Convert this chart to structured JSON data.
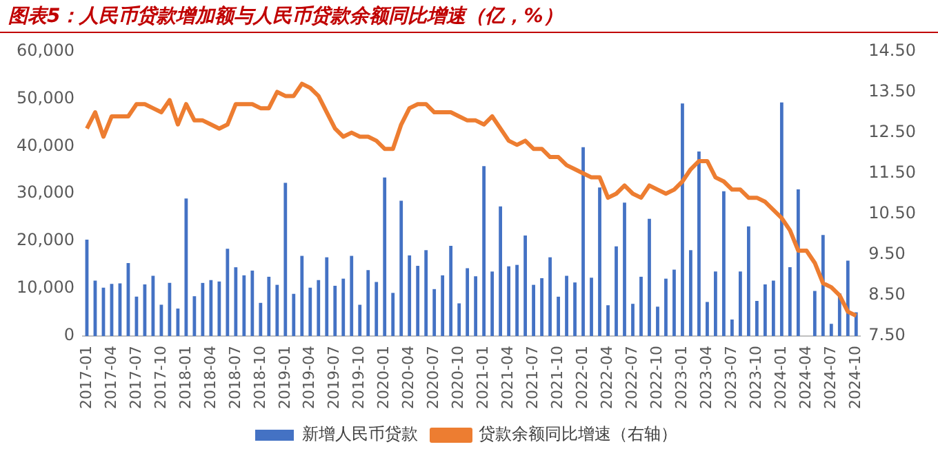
{
  "chart_data": {
    "type": "bar",
    "title": "图表5：人民币贷款增加额与人民币贷款余额同比增速（亿，%）",
    "categories": [
      "2017-01",
      null,
      null,
      "2017-04",
      null,
      null,
      "2017-07",
      null,
      null,
      "2017-10",
      null,
      null,
      "2018-01",
      null,
      null,
      "2018-04",
      null,
      null,
      "2018-07",
      null,
      null,
      "2018-10",
      null,
      null,
      "2019-01",
      null,
      null,
      "2019-04",
      null,
      null,
      "2019-07",
      null,
      null,
      "2019-10",
      null,
      null,
      "2020-01",
      null,
      null,
      "2020-04",
      null,
      null,
      "2020-07",
      null,
      null,
      "2020-10",
      null,
      null,
      "2021-01",
      null,
      null,
      "2021-04",
      null,
      null,
      "2021-07",
      null,
      null,
      "2021-10",
      null,
      null,
      "2022-01",
      null,
      null,
      "2022-04",
      null,
      null,
      "2022-07",
      null,
      null,
      "2022-10",
      null,
      null,
      "2023-01",
      null,
      null,
      "2023-04",
      null,
      null,
      "2023-07",
      null,
      null,
      "2023-10",
      null,
      null,
      "2024-01",
      null,
      null,
      "2024-04",
      null,
      null,
      "2024-07",
      null,
      null,
      "2024-10"
    ],
    "series": [
      {
        "name": "新增人民币贷款",
        "color": "#4472c4",
        "values": [
          20300,
          11700,
          10200,
          11000,
          11100,
          15400,
          8300,
          10900,
          12700,
          6600,
          11200,
          5800,
          29000,
          8400,
          11200,
          11800,
          11500,
          18400,
          14500,
          12800,
          13800,
          7000,
          12500,
          10800,
          32300,
          8900,
          16900,
          10200,
          11800,
          16600,
          10600,
          12100,
          16900,
          6600,
          13900,
          11400,
          33400,
          9100,
          28500,
          17000,
          14800,
          18100,
          9900,
          12800,
          19000,
          6900,
          14300,
          12600,
          35800,
          13600,
          27300,
          14700,
          15000,
          21200,
          10800,
          12200,
          16600,
          8300,
          12700,
          11300,
          39800,
          12300,
          31300,
          6500,
          18900,
          28100,
          6800,
          12500,
          24700,
          6200,
          12100,
          14000,
          49000,
          18100,
          38900,
          7200,
          13600,
          30500,
          3500,
          13600,
          23100,
          7400,
          10900,
          11700,
          49200,
          14500,
          30900,
          null,
          9500,
          21300,
          2600,
          9000,
          15900,
          5000
        ]
      },
      {
        "name": "贷款余额同比增速（右轴）",
        "type": "line",
        "axis": "y2",
        "color": "#ed7d31",
        "values": [
          12.6,
          13.0,
          12.4,
          12.9,
          12.9,
          12.9,
          13.2,
          13.2,
          13.1,
          13.0,
          13.3,
          12.7,
          13.2,
          12.8,
          12.8,
          12.7,
          12.6,
          12.7,
          13.2,
          13.2,
          13.2,
          13.1,
          13.1,
          13.5,
          13.4,
          13.4,
          13.7,
          13.6,
          13.4,
          13.0,
          12.6,
          12.4,
          12.5,
          12.4,
          12.4,
          12.3,
          12.1,
          12.1,
          12.7,
          13.1,
          13.2,
          13.2,
          13.0,
          13.0,
          13.0,
          12.9,
          12.8,
          12.8,
          12.7,
          12.9,
          12.6,
          12.3,
          12.2,
          12.3,
          12.1,
          12.1,
          11.9,
          11.9,
          11.7,
          11.6,
          11.5,
          11.4,
          11.4,
          10.9,
          11.0,
          11.2,
          11.0,
          10.9,
          11.2,
          11.1,
          11.0,
          11.1,
          11.3,
          11.6,
          11.8,
          11.8,
          11.4,
          11.3,
          11.1,
          11.1,
          10.9,
          10.9,
          10.8,
          10.6,
          10.4,
          10.1,
          9.6,
          9.6,
          9.3,
          8.8,
          8.7,
          8.5,
          8.1,
          8.0
        ]
      }
    ],
    "ylim": [
      0,
      60000
    ],
    "yticks": [
      {
        "value": 0,
        "label": "0"
      },
      {
        "value": 10000,
        "label": "10,000"
      },
      {
        "value": 20000,
        "label": "20,000"
      },
      {
        "value": 30000,
        "label": "30,000"
      },
      {
        "value": 40000,
        "label": "40,000"
      },
      {
        "value": 50000,
        "label": "50,000"
      },
      {
        "value": 60000,
        "label": "60,000"
      }
    ],
    "y2lim": [
      7.5,
      14.5
    ],
    "y2ticks": [
      {
        "value": 7.5,
        "label": "7.50"
      },
      {
        "value": 8.5,
        "label": "8.50"
      },
      {
        "value": 9.5,
        "label": "9.50"
      },
      {
        "value": 10.5,
        "label": "10.50"
      },
      {
        "value": 11.5,
        "label": "11.50"
      },
      {
        "value": 12.5,
        "label": "12.50"
      },
      {
        "value": 13.5,
        "label": "13.50"
      },
      {
        "value": 14.5,
        "label": "14.50"
      }
    ],
    "grid": false,
    "legend": "bottom",
    "marker": "none",
    "line_style": "solid"
  }
}
